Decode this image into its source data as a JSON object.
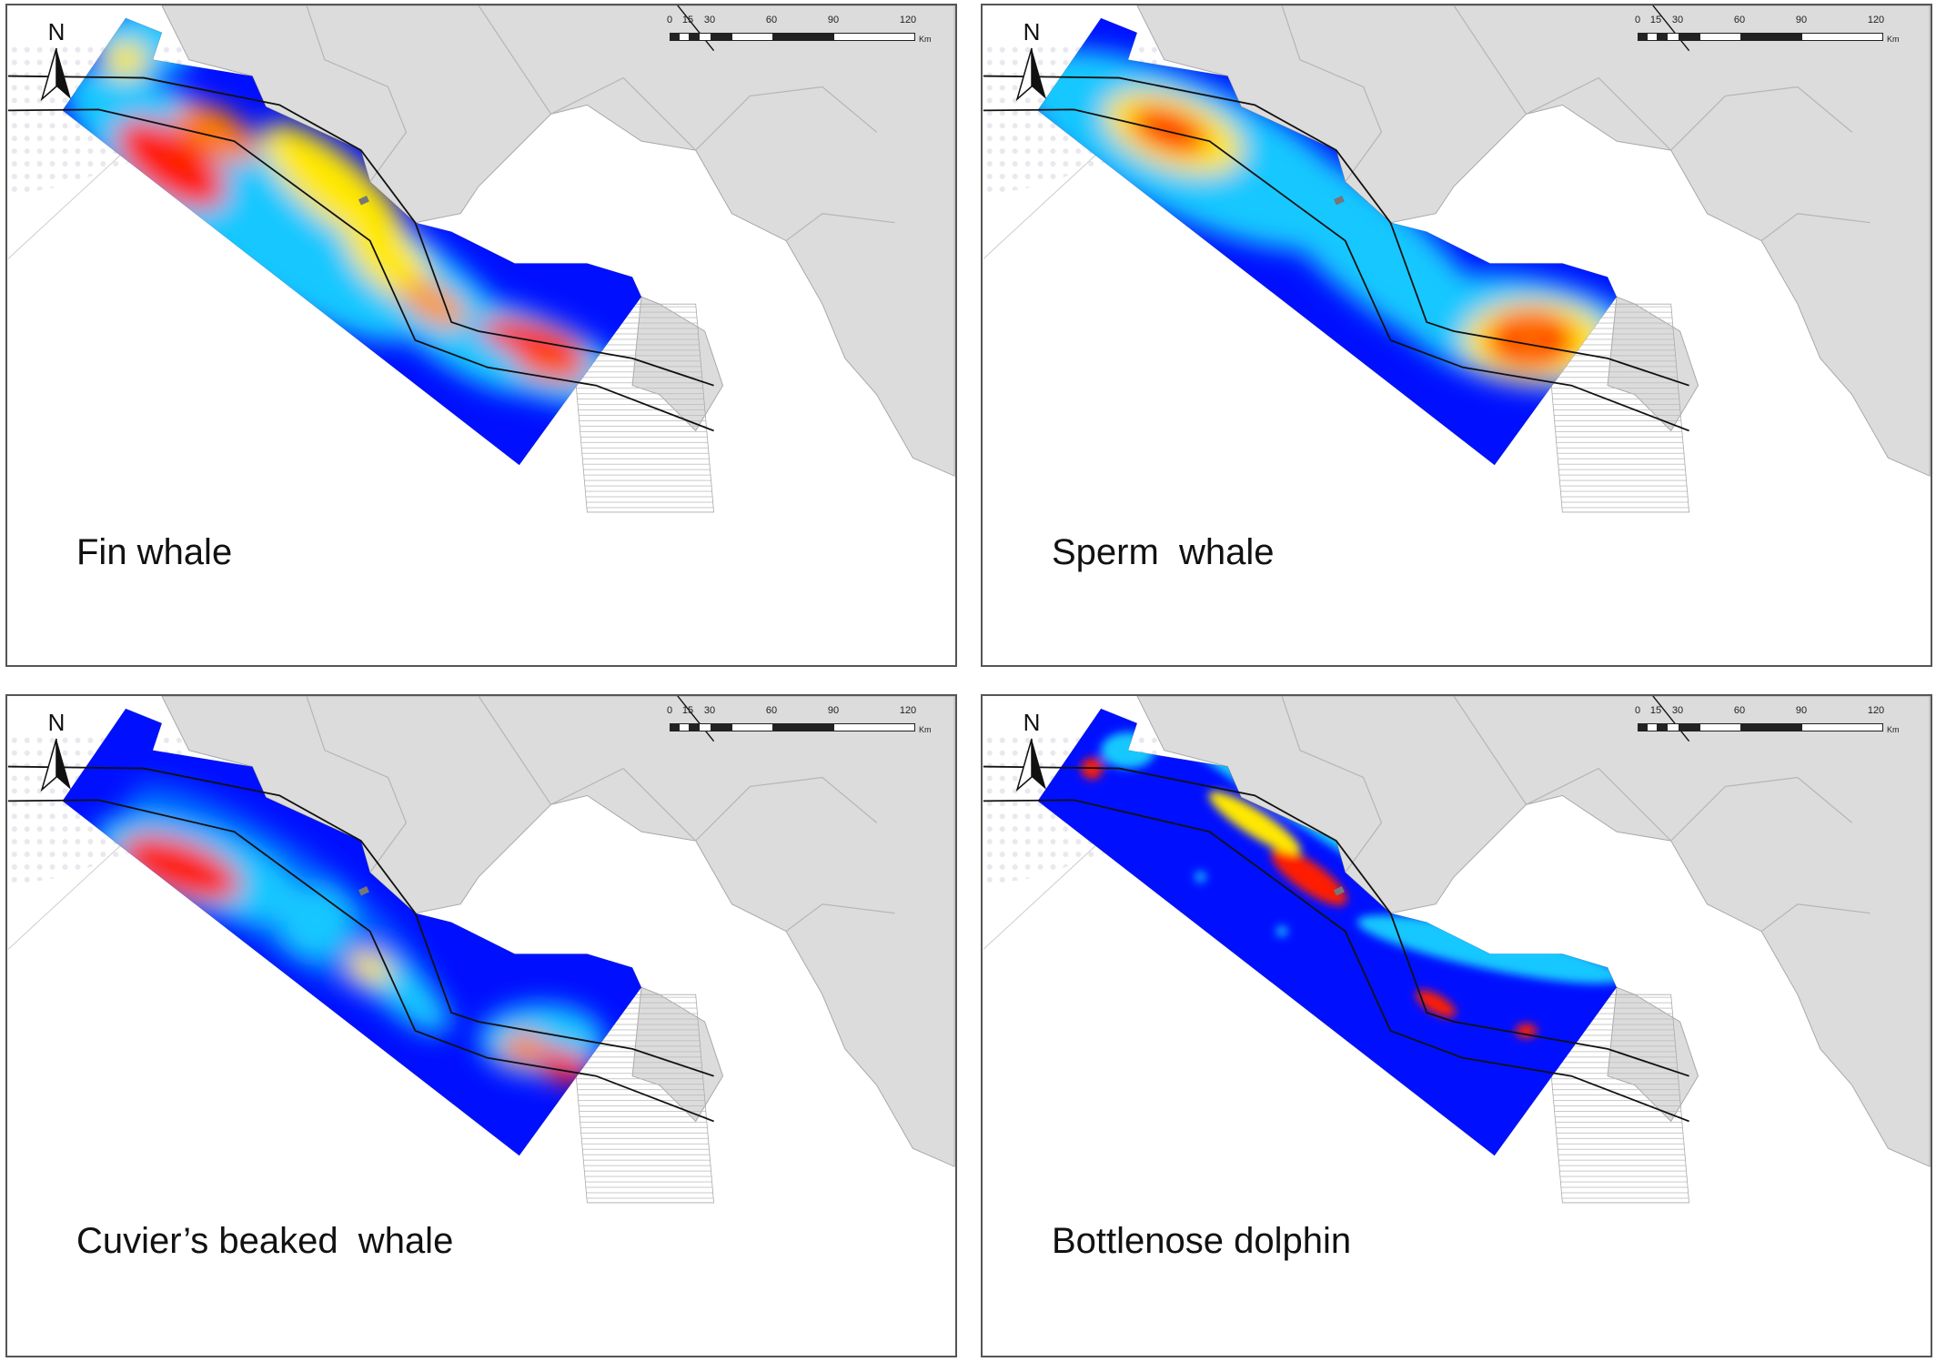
{
  "panels": [
    {
      "label": "Fin whale",
      "species": "fin"
    },
    {
      "label": "Sperm  whale",
      "species": "sperm"
    },
    {
      "label": "Cuvier’s beaked  whale",
      "species": "cuvier"
    },
    {
      "label": "Bottlenose dolphin",
      "species": "bottlenose"
    }
  ],
  "north_label": "N",
  "scale": {
    "ticks": [
      "0",
      "15",
      "30",
      "60",
      "90",
      "120"
    ],
    "unit": "Km"
  },
  "colors": {
    "land": "#dcdcdc",
    "land_edge": "#a8a8a8",
    "sea": "#ffffff",
    "low": "#0010ff",
    "mid": "#19c8ff",
    "high_mid": "#ffe800",
    "high": "#ff1a00"
  }
}
